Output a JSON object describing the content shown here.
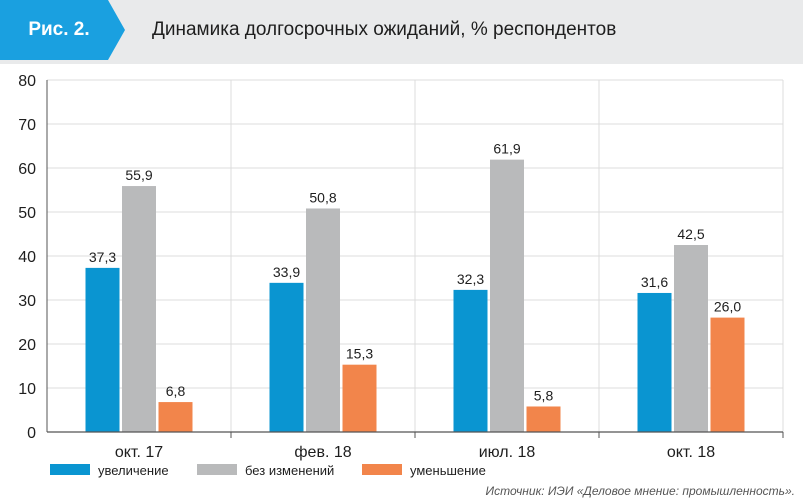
{
  "header": {
    "figure_label": "Рис. 2.",
    "title": "Динамика долгосрочных ожиданий, % респондентов"
  },
  "chart_data": {
    "type": "bar",
    "categories": [
      "окт. 17",
      "фев. 18",
      "июл. 18",
      "окт. 18"
    ],
    "series": [
      {
        "name": "увеличение",
        "color": "#0a95d1",
        "values": [
          37.3,
          33.9,
          32.3,
          31.6
        ],
        "labels": [
          "37,3",
          "33,9",
          "32,3",
          "31,6"
        ]
      },
      {
        "name": "без изменений",
        "color": "#b9babb",
        "values": [
          55.9,
          50.8,
          61.9,
          42.5
        ],
        "labels": [
          "55,9",
          "50,8",
          "61,9",
          "42,5"
        ]
      },
      {
        "name": "уменьшение",
        "color": "#f2854b",
        "values": [
          6.8,
          15.3,
          5.8,
          26.0
        ],
        "labels": [
          "6,8",
          "15,3",
          "5,8",
          "26,0"
        ]
      }
    ],
    "ylim": [
      0,
      80
    ],
    "yticks": [
      "0",
      "10",
      "20",
      "30",
      "40",
      "50",
      "60",
      "70",
      "80"
    ],
    "grid": true,
    "legend_position": "bottom-left"
  },
  "colors": {
    "badge": "#1aa0e0",
    "header_bg": "#e9eaeb"
  },
  "source": "Источник: ИЭИ «Деловое мнение: промышленность»."
}
